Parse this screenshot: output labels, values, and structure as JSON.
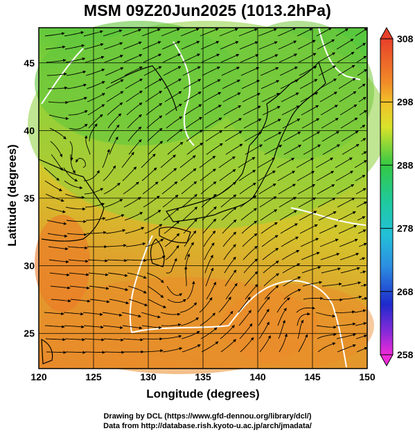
{
  "title": "MSM 09Z20Jun2025 (1013.2hPa)",
  "xaxis": {
    "label": "Longitude (degrees)",
    "ticks": [
      "120",
      "125",
      "130",
      "135",
      "140",
      "145",
      "150"
    ],
    "range": [
      120,
      150
    ]
  },
  "yaxis": {
    "label": "Latitude  (degrees)",
    "ticks": [
      "25",
      "30",
      "35",
      "40",
      "45"
    ],
    "range": [
      22.4,
      47.6
    ]
  },
  "colorbar": {
    "ticks": [
      "308",
      "298",
      "288",
      "278",
      "268",
      "258"
    ],
    "range": [
      258,
      308
    ]
  },
  "credits": [
    "Drawing by DCL (https://www.gfd-dennou.org/library/dcl/)",
    "Data from http://database.rish.kyoto-u.ac.jp/arch/jmadata/"
  ],
  "colors": {
    "warm": "#e8932c",
    "mid": "#d6cd2a",
    "cool": "#58c83e",
    "streamline": "#000000",
    "contour": "#ffffff"
  }
}
